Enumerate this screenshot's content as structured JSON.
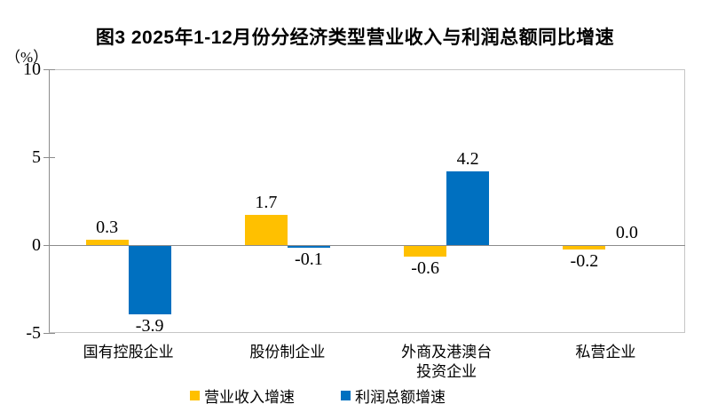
{
  "figure": {
    "title": "图3 2025年1-12月份分经济类型营业收入与利润总额同比增速",
    "y_axis_unit": "（%）"
  },
  "chart_data": {
    "type": "bar",
    "title": "图3 2025年1-12月份分经济类型营业收入与利润总额同比增速",
    "categories": [
      "国有控股企业",
      "股份制企业",
      "外商及港澳台\n投资企业",
      "私营企业"
    ],
    "series": [
      {
        "name": "营业收入增速",
        "color": "#FFC000",
        "values": [
          0.3,
          1.7,
          -0.6,
          -0.2
        ]
      },
      {
        "name": "利润总额增速",
        "color": "#0070C0",
        "values": [
          -3.9,
          -0.1,
          4.2,
          0.0
        ]
      }
    ],
    "xlabel": "",
    "ylabel": "（%）",
    "ylim": [
      -5,
      10
    ],
    "yticks": [
      10,
      5,
      0,
      -5
    ],
    "grid": false,
    "legend_position": "bottom",
    "value_labels": [
      [
        "0.3",
        "1.7",
        "-0.6",
        "-0.2"
      ],
      [
        "-3.9",
        "-0.1",
        "4.2",
        "0.0"
      ]
    ],
    "axis_color": "#8c8c8c",
    "frame_color": "#c6c6c6"
  }
}
